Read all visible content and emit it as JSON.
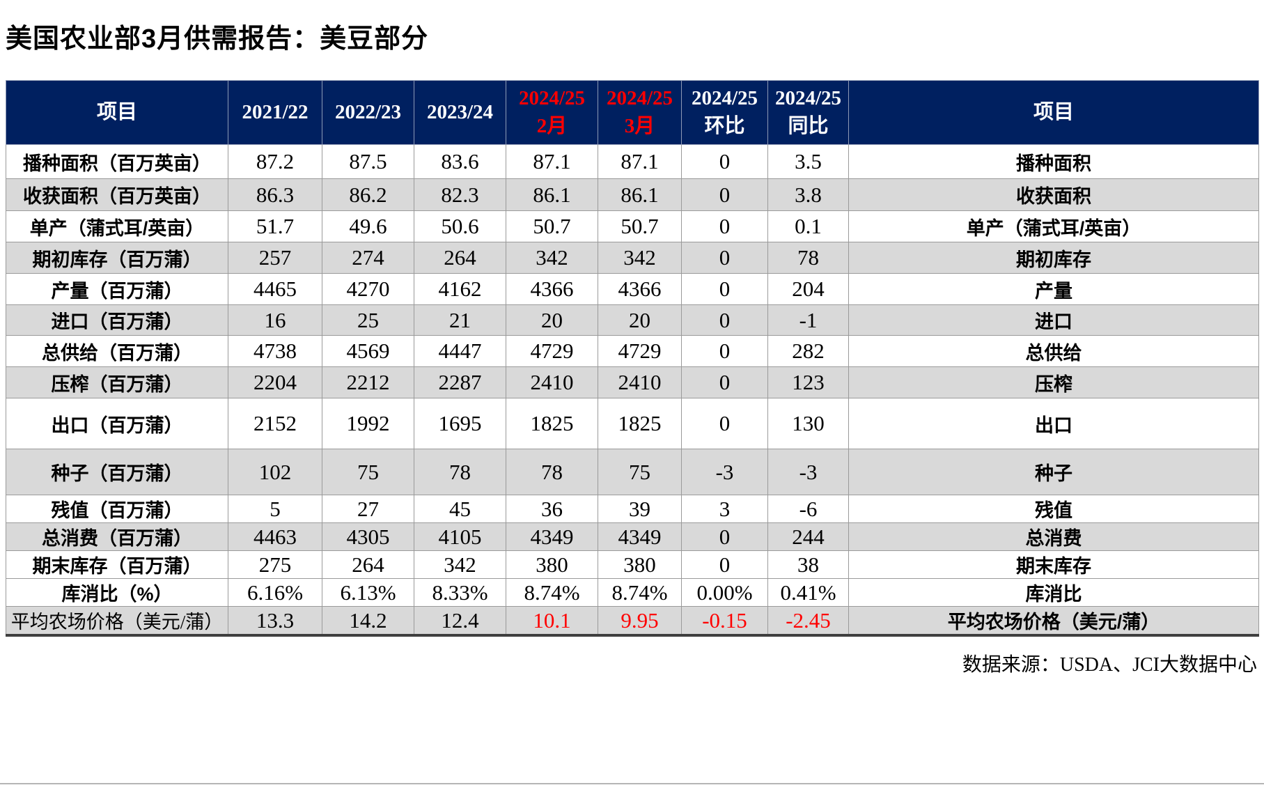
{
  "page_title": "美国农业部3月供需报告：美豆部分",
  "source_note": "数据来源：USDA、JCI大数据中心",
  "colors": {
    "header_bg": "#002060",
    "header_text": "#ffffff",
    "highlight_red": "#ff0000",
    "stripe_gray": "#d9d9d9",
    "row_white": "#ffffff"
  },
  "table": {
    "columns": [
      {
        "lines": [
          "项目"
        ],
        "red": false
      },
      {
        "lines": [
          "2021/22"
        ],
        "red": false
      },
      {
        "lines": [
          "2022/23"
        ],
        "red": false
      },
      {
        "lines": [
          "2023/24"
        ],
        "red": false
      },
      {
        "lines": [
          "2024/25",
          "2月"
        ],
        "red": true
      },
      {
        "lines": [
          "2024/25",
          "3月"
        ],
        "red": true
      },
      {
        "lines": [
          "2024/25",
          "环比"
        ],
        "red": false
      },
      {
        "lines": [
          "2024/25",
          "同比"
        ],
        "red": false
      },
      {
        "lines": [
          "项目"
        ],
        "red": false
      }
    ],
    "rows": [
      {
        "label": "播种面积（百万英亩）",
        "values": [
          "87.2",
          "87.5",
          "83.6",
          "87.1",
          "87.1",
          "0",
          "3.5"
        ],
        "label_right": "播种面积",
        "shade": "white",
        "red_value_indices": []
      },
      {
        "label": "收获面积（百万英亩）",
        "values": [
          "86.3",
          "86.2",
          "82.3",
          "86.1",
          "86.1",
          "0",
          "3.8"
        ],
        "label_right": "收获面积",
        "shade": "gray",
        "red_value_indices": []
      },
      {
        "label": "单产（蒲式耳/英亩）",
        "values": [
          "51.7",
          "49.6",
          "50.6",
          "50.7",
          "50.7",
          "0",
          "0.1"
        ],
        "label_right": "单产（蒲式耳/英亩）",
        "shade": "white",
        "red_value_indices": []
      },
      {
        "label": "期初库存（百万蒲）",
        "values": [
          "257",
          "274",
          "264",
          "342",
          "342",
          "0",
          "78"
        ],
        "label_right": "期初库存",
        "shade": "gray",
        "red_value_indices": []
      },
      {
        "label": "产量（百万蒲）",
        "values": [
          "4465",
          "4270",
          "4162",
          "4366",
          "4366",
          "0",
          "204"
        ],
        "label_right": "产量",
        "shade": "white",
        "red_value_indices": []
      },
      {
        "label": "进口（百万蒲）",
        "values": [
          "16",
          "25",
          "21",
          "20",
          "20",
          "0",
          "-1"
        ],
        "label_right": "进口",
        "shade": "gray",
        "red_value_indices": []
      },
      {
        "label": "总供给（百万蒲）",
        "values": [
          "4738",
          "4569",
          "4447",
          "4729",
          "4729",
          "0",
          "282"
        ],
        "label_right": "总供给",
        "shade": "white",
        "red_value_indices": []
      },
      {
        "label": "压榨（百万蒲）",
        "values": [
          "2204",
          "2212",
          "2287",
          "2410",
          "2410",
          "0",
          "123"
        ],
        "label_right": "压榨",
        "shade": "gray",
        "red_value_indices": []
      },
      {
        "label": "出口（百万蒲）",
        "values": [
          "2152",
          "1992",
          "1695",
          "1825",
          "1825",
          "0",
          "130"
        ],
        "label_right": "出口",
        "shade": "white",
        "red_value_indices": []
      },
      {
        "label": "种子（百万蒲）",
        "values": [
          "102",
          "75",
          "78",
          "78",
          "75",
          "-3",
          "-3"
        ],
        "label_right": "种子",
        "shade": "gray",
        "red_value_indices": []
      },
      {
        "label": "残值（百万蒲）",
        "values": [
          "5",
          "27",
          "45",
          "36",
          "39",
          "3",
          "-6"
        ],
        "label_right": "残值",
        "shade": "white",
        "red_value_indices": []
      },
      {
        "label": "总消费（百万蒲）",
        "values": [
          "4463",
          "4305",
          "4105",
          "4349",
          "4349",
          "0",
          "244"
        ],
        "label_right": "总消费",
        "shade": "gray",
        "red_value_indices": []
      },
      {
        "label": "期末库存（百万蒲）",
        "values": [
          "275",
          "264",
          "342",
          "380",
          "380",
          "0",
          "38"
        ],
        "label_right": "期末库存",
        "shade": "white",
        "red_value_indices": []
      },
      {
        "label": "库消比（%）",
        "values": [
          "6.16%",
          "6.13%",
          "8.33%",
          "8.74%",
          "8.74%",
          "0.00%",
          "0.41%"
        ],
        "label_right": "库消比",
        "shade": "white",
        "red_value_indices": []
      },
      {
        "label": "平均农场价格（美元/蒲）",
        "values": [
          "13.3",
          "14.2",
          "12.4",
          "10.1",
          "9.95",
          "-0.15",
          "-2.45"
        ],
        "label_right": "平均农场价格（美元/蒲）",
        "shade": "gray",
        "red_value_indices": [
          3,
          4,
          5,
          6
        ],
        "label_regular": true
      }
    ]
  }
}
